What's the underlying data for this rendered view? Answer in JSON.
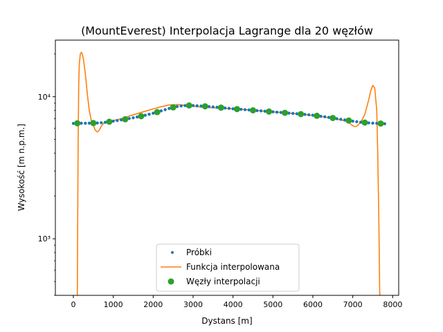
{
  "chart_data": {
    "type": "line",
    "title": "(MountEverest) Interpolacja Lagrange dla 20 węzłów",
    "xlabel": "Dystans [m]",
    "ylabel": "Wysokość [m n.p.m.]",
    "xlim": [
      -450,
      8150
    ],
    "ylim": [
      400,
      25000
    ],
    "yscale": "log",
    "x_ticks": [
      0,
      1000,
      2000,
      3000,
      4000,
      5000,
      6000,
      7000,
      8000
    ],
    "x_tick_labels": [
      "0",
      "1000",
      "2000",
      "3000",
      "4000",
      "5000",
      "6000",
      "7000",
      "8000"
    ],
    "y_ticks": [
      1000,
      10000
    ],
    "y_tick_labels": [
      "10³",
      "10⁴"
    ],
    "legend_position": "lower center",
    "series": [
      {
        "name": "Próbki",
        "style": "dots",
        "color": "#1f77b4",
        "x": [
          0,
          100,
          200,
          300,
          400,
          500,
          600,
          700,
          800,
          900,
          1000,
          1100,
          1200,
          1300,
          1400,
          1500,
          1600,
          1700,
          1800,
          1900,
          2000,
          2100,
          2200,
          2300,
          2400,
          2500,
          2600,
          2700,
          2800,
          2900,
          3000,
          3100,
          3200,
          3300,
          3400,
          3500,
          3600,
          3700,
          3800,
          3900,
          4000,
          4100,
          4200,
          4300,
          4400,
          4500,
          4600,
          4700,
          4800,
          4900,
          5000,
          5100,
          5200,
          5300,
          5400,
          5500,
          5600,
          5700,
          5800,
          5900,
          6000,
          6100,
          6200,
          6300,
          6400,
          6500,
          6600,
          6700,
          6800,
          6900,
          7000,
          7100,
          7200,
          7300,
          7400,
          7500,
          7600,
          7700,
          7800
        ],
        "y": [
          6480,
          6490,
          6500,
          6500,
          6510,
          6520,
          6530,
          6560,
          6600,
          6660,
          6720,
          6790,
          6870,
          6940,
          7020,
          7100,
          7190,
          7290,
          7400,
          7520,
          7650,
          7790,
          7940,
          8100,
          8260,
          8400,
          8520,
          8600,
          8650,
          8670,
          8660,
          8630,
          8590,
          8550,
          8510,
          8470,
          8420,
          8370,
          8320,
          8270,
          8220,
          8180,
          8140,
          8100,
          8060,
          8020,
          7980,
          7940,
          7900,
          7860,
          7820,
          7780,
          7740,
          7700,
          7660,
          7620,
          7580,
          7540,
          7500,
          7450,
          7400,
          7340,
          7280,
          7220,
          7150,
          7080,
          7000,
          6930,
          6860,
          6790,
          6720,
          6660,
          6610,
          6570,
          6540,
          6510,
          6490,
          6470,
          6450
        ]
      },
      {
        "name": "Funkcja interpolowana",
        "style": "line",
        "color": "#ff7f0e",
        "x": [
          100,
          110,
          120,
          135,
          150,
          175,
          200,
          225,
          250,
          300,
          350,
          400,
          450,
          500,
          550,
          600,
          650,
          700,
          800,
          900,
          1000,
          1200,
          1400,
          1600,
          1800,
          2000,
          2200,
          2400,
          2600,
          2800,
          3000,
          3200,
          3400,
          3600,
          3800,
          4000,
          4200,
          4400,
          4600,
          4800,
          5000,
          5200,
          5400,
          5600,
          5800,
          6000,
          6200,
          6400,
          6600,
          6800,
          6900,
          7000,
          7050,
          7100,
          7200,
          7300,
          7400,
          7450,
          7500,
          7550,
          7600,
          7625,
          7650,
          7675,
          7700
        ],
        "y": [
          400,
          1500,
          5000,
          12000,
          17000,
          20000,
          20500,
          20000,
          18500,
          14500,
          10500,
          8000,
          6800,
          6300,
          5800,
          5650,
          5800,
          6200,
          6680,
          6720,
          6800,
          7000,
          7300,
          7600,
          7900,
          8200,
          8500,
          8750,
          8800,
          8700,
          8550,
          8450,
          8380,
          8320,
          8280,
          8220,
          8150,
          8080,
          8000,
          7900,
          7820,
          7740,
          7660,
          7580,
          7480,
          7380,
          7250,
          7100,
          6950,
          6750,
          6550,
          6250,
          6150,
          6200,
          6600,
          7500,
          9500,
          11000,
          12000,
          11500,
          8000,
          4000,
          1500,
          400,
          400
        ]
      },
      {
        "name": "Węzły interpolacji",
        "style": "markers",
        "color": "#2ca02c",
        "x": [
          100,
          500,
          900,
          1300,
          1700,
          2100,
          2500,
          2900,
          3300,
          3700,
          4100,
          4500,
          4900,
          5300,
          5700,
          6100,
          6500,
          6900,
          7300,
          7700
        ],
        "y": [
          6500,
          6520,
          6660,
          6940,
          7290,
          7790,
          8400,
          8670,
          8550,
          8370,
          8180,
          8020,
          7860,
          7700,
          7540,
          7340,
          7080,
          6790,
          6570,
          6470
        ]
      }
    ]
  }
}
